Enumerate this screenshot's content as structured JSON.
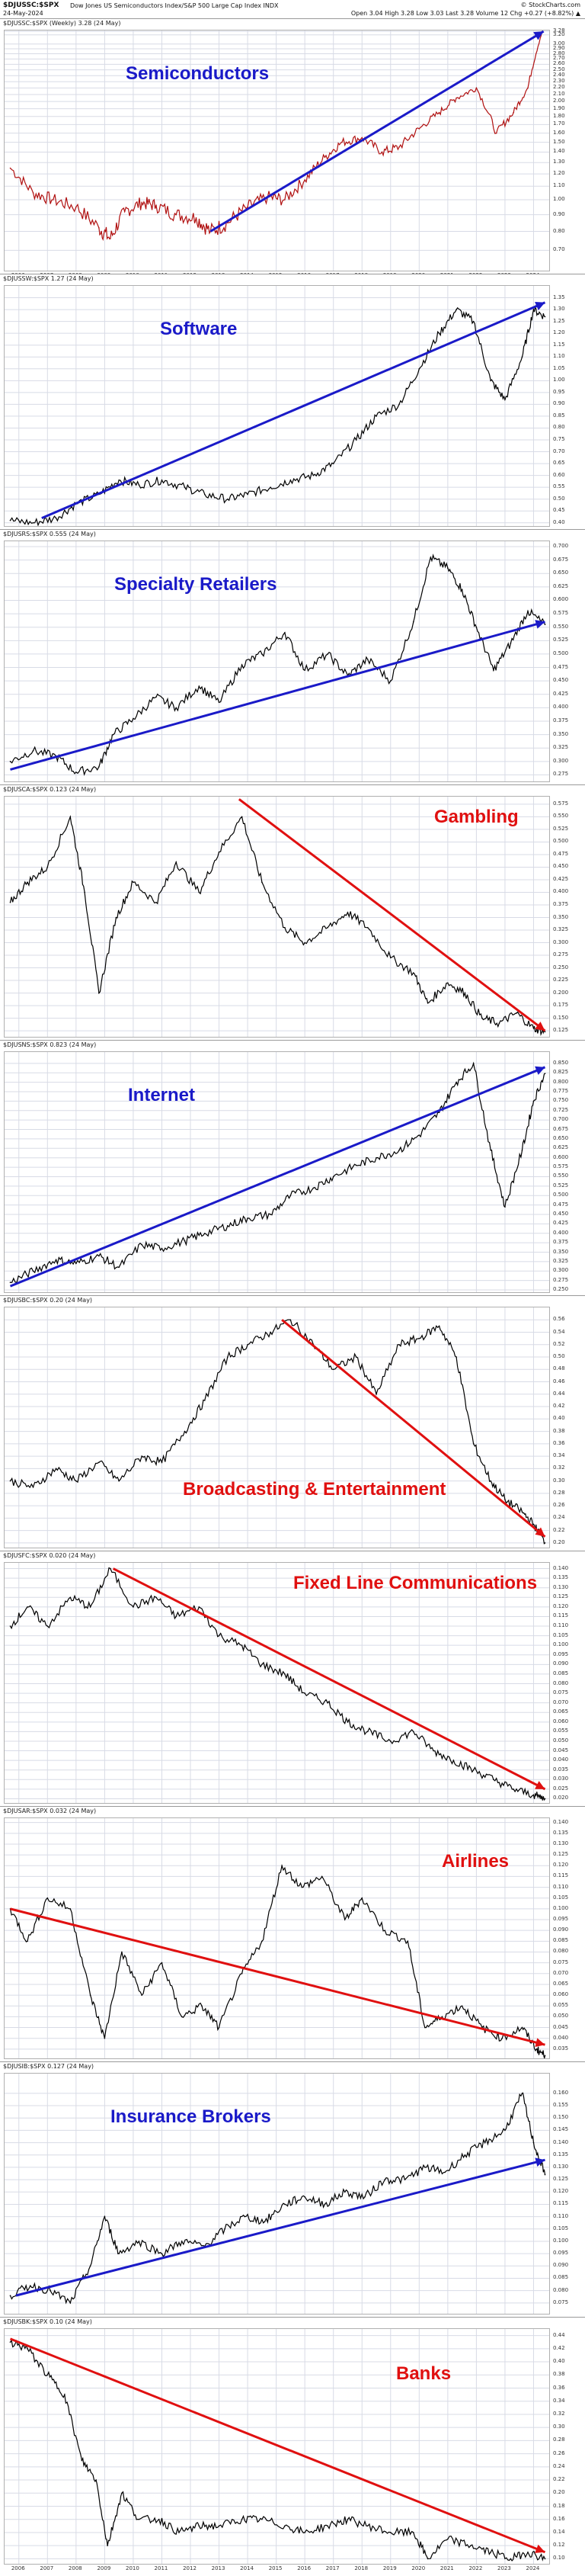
{
  "header": {
    "symbol": "$DJUSSC:$SPX",
    "name": "Dow Jones US Semiconductors Index/S&P 500 Large Cap Index  INDX",
    "date": "24-May-2024",
    "brand": "© StockCharts.com",
    "ohlc": "Open 3.04  High 3.28  Low 3.03  Last 3.28  Volume 12  Chg +0.27 (+8.82%) ▲"
  },
  "colors": {
    "blue": "#1a1ac8",
    "red": "#e01010",
    "series_red": "#b01010",
    "series_black": "#000000",
    "grid": "#d8dbe6"
  },
  "x_ticks": [
    "2006",
    "2007",
    "2008",
    "2009",
    "2010",
    "2011",
    "2012",
    "2013",
    "2014",
    "2015",
    "2016",
    "2017",
    "2018",
    "2019",
    "2020",
    "2021",
    "2022",
    "2023",
    "2024"
  ],
  "chart_data": [
    {
      "type": "line",
      "name": "semiconductors",
      "header": "$DJUSSC:$SPX (Weekly) 3.28 (24 May)",
      "label": "Semiconductors",
      "label_color": "blue",
      "line_color": "series_red",
      "log_scale": true,
      "ylim": [
        0.6,
        3.3
      ],
      "y_ticks": [
        "3.28",
        "3.20",
        "3.00",
        "2.90",
        "2.80",
        "2.70",
        "2.60",
        "2.50",
        "2.40",
        "2.30",
        "2.20",
        "2.10",
        "2.00",
        "1.90",
        "1.80",
        "1.70",
        "1.60",
        "1.50",
        "1.40",
        "1.30",
        "1.20",
        "1.10",
        "1.00",
        "0.90",
        "0.80",
        "0.70"
      ],
      "x": [
        2005.7,
        2006.5,
        2007.2,
        2008.0,
        2008.8,
        2009.2,
        2009.7,
        2010.3,
        2010.8,
        2011.5,
        2012.2,
        2012.7,
        2013.3,
        2014.0,
        2014.7,
        2015.3,
        2016.0,
        2016.7,
        2017.3,
        2018.0,
        2018.7,
        2019.3,
        2020.0,
        2020.7,
        2021.3,
        2022.0,
        2022.7,
        2023.3,
        2023.8,
        2024.3
      ],
      "values": [
        1.25,
        1.05,
        1.0,
        0.95,
        0.82,
        0.76,
        0.92,
        0.98,
        0.96,
        0.9,
        0.88,
        0.8,
        0.85,
        0.95,
        1.02,
        1.0,
        1.15,
        1.35,
        1.5,
        1.55,
        1.4,
        1.45,
        1.65,
        1.85,
        2.05,
        2.2,
        1.6,
        1.85,
        2.2,
        3.28
      ],
      "trend": {
        "color": "blue",
        "from": [
          2012.7,
          0.8
        ],
        "to": [
          2024.35,
          3.28
        ]
      }
    },
    {
      "type": "line",
      "name": "software",
      "header": "$DJUSSW:$SPX 1.27 (24 May)",
      "label": "Software",
      "label_color": "blue",
      "line_color": "series_black",
      "log_scale": false,
      "ylim": [
        0.38,
        1.4
      ],
      "y_ticks": [
        "1.35",
        "1.30",
        "1.25",
        "1.20",
        "1.15",
        "1.10",
        "1.05",
        "1.00",
        "0.95",
        "0.90",
        "0.85",
        "0.80",
        "0.75",
        "0.70",
        "0.65",
        "0.60",
        "0.55",
        "0.50",
        "0.45",
        "0.40"
      ],
      "x": [
        2005.7,
        2006.5,
        2007.3,
        2008.0,
        2008.8,
        2009.5,
        2010.2,
        2011.0,
        2011.8,
        2012.5,
        2013.3,
        2014.0,
        2014.8,
        2015.5,
        2016.3,
        2017.0,
        2017.8,
        2018.5,
        2019.3,
        2020.0,
        2020.7,
        2021.3,
        2021.9,
        2022.5,
        2023.0,
        2023.6,
        2024.0,
        2024.4
      ],
      "values": [
        0.41,
        0.4,
        0.42,
        0.48,
        0.52,
        0.58,
        0.56,
        0.58,
        0.55,
        0.52,
        0.5,
        0.52,
        0.55,
        0.58,
        0.6,
        0.65,
        0.75,
        0.85,
        0.9,
        1.05,
        1.2,
        1.3,
        1.25,
        1.0,
        0.92,
        1.1,
        1.3,
        1.27
      ],
      "trend": {
        "color": "blue",
        "from": [
          2006.8,
          0.42
        ],
        "to": [
          2024.4,
          1.33
        ]
      }
    },
    {
      "type": "line",
      "name": "specialty-retailers",
      "header": "$DJUSRS:$SPX 0.555 (24 May)",
      "label": "Specialty Retailers",
      "label_color": "blue",
      "line_color": "series_black",
      "log_scale": false,
      "ylim": [
        0.26,
        0.71
      ],
      "y_ticks": [
        "0.700",
        "0.675",
        "0.650",
        "0.625",
        "0.600",
        "0.575",
        "0.550",
        "0.525",
        "0.500",
        "0.475",
        "0.450",
        "0.425",
        "0.400",
        "0.375",
        "0.350",
        "0.325",
        "0.300",
        "0.275"
      ],
      "x": [
        2005.7,
        2006.5,
        2007.3,
        2008.0,
        2008.8,
        2009.3,
        2010.0,
        2010.8,
        2011.5,
        2012.3,
        2013.0,
        2013.8,
        2014.5,
        2015.3,
        2016.0,
        2016.8,
        2017.5,
        2018.2,
        2019.0,
        2019.8,
        2020.4,
        2021.0,
        2021.5,
        2022.0,
        2022.6,
        2023.2,
        2023.8,
        2024.4
      ],
      "values": [
        0.3,
        0.32,
        0.31,
        0.28,
        0.29,
        0.35,
        0.38,
        0.42,
        0.4,
        0.44,
        0.41,
        0.48,
        0.5,
        0.54,
        0.47,
        0.5,
        0.46,
        0.49,
        0.45,
        0.56,
        0.68,
        0.66,
        0.62,
        0.55,
        0.47,
        0.52,
        0.58,
        0.555
      ],
      "trend": {
        "color": "blue",
        "from": [
          2005.7,
          0.285
        ],
        "to": [
          2024.4,
          0.56
        ]
      }
    },
    {
      "type": "line",
      "name": "gambling",
      "header": "$DJUSCA:$SPX 0.123 (24 May)",
      "label": "Gambling",
      "label_color": "red",
      "line_color": "series_black",
      "log_scale": false,
      "ylim": [
        0.11,
        0.59
      ],
      "y_ticks": [
        "0.575",
        "0.550",
        "0.525",
        "0.500",
        "0.475",
        "0.450",
        "0.425",
        "0.400",
        "0.375",
        "0.350",
        "0.325",
        "0.300",
        "0.275",
        "0.250",
        "0.225",
        "0.200",
        "0.175",
        "0.150",
        "0.125"
      ],
      "x": [
        2005.7,
        2006.3,
        2007.0,
        2007.8,
        2008.3,
        2008.8,
        2009.4,
        2010.0,
        2010.8,
        2011.5,
        2012.3,
        2013.0,
        2013.8,
        2014.5,
        2015.3,
        2016.0,
        2016.8,
        2017.5,
        2018.2,
        2019.0,
        2019.8,
        2020.3,
        2021.0,
        2021.6,
        2022.2,
        2022.8,
        2023.4,
        2024.0,
        2024.4
      ],
      "values": [
        0.38,
        0.42,
        0.45,
        0.55,
        0.4,
        0.2,
        0.35,
        0.42,
        0.38,
        0.46,
        0.4,
        0.48,
        0.55,
        0.42,
        0.33,
        0.3,
        0.33,
        0.36,
        0.33,
        0.27,
        0.24,
        0.18,
        0.22,
        0.2,
        0.15,
        0.14,
        0.16,
        0.13,
        0.123
      ],
      "trend": {
        "color": "red",
        "from": [
          2013.7,
          0.585
        ],
        "to": [
          2024.4,
          0.125
        ]
      }
    },
    {
      "type": "line",
      "name": "internet",
      "header": "$DJUSNS:$SPX 0.823 (24 May)",
      "label": "Internet",
      "label_color": "blue",
      "line_color": "series_black",
      "log_scale": false,
      "ylim": [
        0.24,
        0.88
      ],
      "y_ticks": [
        "0.850",
        "0.825",
        "0.800",
        "0.775",
        "0.750",
        "0.725",
        "0.700",
        "0.675",
        "0.650",
        "0.625",
        "0.600",
        "0.575",
        "0.550",
        "0.525",
        "0.500",
        "0.475",
        "0.450",
        "0.425",
        "0.400",
        "0.375",
        "0.350",
        "0.325",
        "0.300",
        "0.275",
        "0.250"
      ],
      "x": [
        2005.7,
        2006.5,
        2007.3,
        2008.0,
        2008.8,
        2009.5,
        2010.3,
        2011.0,
        2011.8,
        2012.5,
        2013.3,
        2014.0,
        2014.8,
        2015.5,
        2016.3,
        2017.0,
        2017.8,
        2018.5,
        2019.3,
        2020.0,
        2020.7,
        2021.3,
        2021.9,
        2022.5,
        2023.0,
        2023.6,
        2024.0,
        2024.4
      ],
      "values": [
        0.27,
        0.3,
        0.33,
        0.32,
        0.34,
        0.31,
        0.37,
        0.36,
        0.38,
        0.4,
        0.42,
        0.44,
        0.45,
        0.5,
        0.52,
        0.55,
        0.58,
        0.6,
        0.62,
        0.66,
        0.72,
        0.8,
        0.85,
        0.62,
        0.47,
        0.62,
        0.75,
        0.823
      ],
      "trend": {
        "color": "blue",
        "from": [
          2005.7,
          0.26
        ],
        "to": [
          2024.4,
          0.84
        ]
      }
    },
    {
      "type": "line",
      "name": "broadcasting-entertainment",
      "header": "$DJUSBC:$SPX 0.20 (24 May)",
      "label": "Broadcasting & Entertainment",
      "label_color": "red",
      "line_color": "series_black",
      "log_scale": false,
      "ylim": [
        0.19,
        0.58
      ],
      "y_ticks": [
        "0.56",
        "0.54",
        "0.52",
        "0.50",
        "0.48",
        "0.46",
        "0.44",
        "0.42",
        "0.40",
        "0.38",
        "0.36",
        "0.34",
        "0.32",
        "0.30",
        "0.28",
        "0.26",
        "0.24",
        "0.22",
        "0.20"
      ],
      "x": [
        2005.7,
        2006.5,
        2007.3,
        2008.0,
        2008.8,
        2009.5,
        2010.3,
        2011.0,
        2011.8,
        2012.5,
        2013.3,
        2014.0,
        2014.8,
        2015.5,
        2016.3,
        2017.0,
        2017.8,
        2018.5,
        2019.3,
        2020.0,
        2020.7,
        2021.3,
        2021.9,
        2022.5,
        2023.0,
        2023.6,
        2024.0,
        2024.4
      ],
      "values": [
        0.3,
        0.29,
        0.32,
        0.3,
        0.33,
        0.3,
        0.34,
        0.33,
        0.38,
        0.43,
        0.5,
        0.52,
        0.54,
        0.56,
        0.52,
        0.48,
        0.5,
        0.44,
        0.52,
        0.53,
        0.55,
        0.5,
        0.36,
        0.3,
        0.27,
        0.25,
        0.23,
        0.2
      ],
      "trend": {
        "color": "red",
        "from": [
          2015.2,
          0.56
        ],
        "to": [
          2024.4,
          0.21
        ]
      }
    },
    {
      "type": "line",
      "name": "fixed-line-communications",
      "header": "$DJUSFC:$SPX 0.020 (24 May)",
      "label": "Fixed Line Communications",
      "label_color": "red",
      "line_color": "series_black",
      "log_scale": false,
      "ylim": [
        0.017,
        0.143
      ],
      "y_ticks": [
        "0.140",
        "0.135",
        "0.130",
        "0.125",
        "0.120",
        "0.115",
        "0.110",
        "0.105",
        "0.100",
        "0.095",
        "0.090",
        "0.085",
        "0.080",
        "0.075",
        "0.070",
        "0.065",
        "0.060",
        "0.055",
        "0.050",
        "0.045",
        "0.040",
        "0.035",
        "0.030",
        "0.025",
        "0.020"
      ],
      "x": [
        2005.7,
        2006.3,
        2007.0,
        2007.8,
        2008.5,
        2009.2,
        2010.0,
        2010.8,
        2011.5,
        2012.3,
        2013.0,
        2013.8,
        2014.5,
        2015.3,
        2016.0,
        2016.8,
        2017.5,
        2018.2,
        2019.0,
        2019.8,
        2020.5,
        2021.2,
        2021.9,
        2022.6,
        2023.3,
        2024.0,
        2024.4
      ],
      "values": [
        0.11,
        0.12,
        0.11,
        0.125,
        0.12,
        0.14,
        0.12,
        0.125,
        0.115,
        0.12,
        0.105,
        0.1,
        0.09,
        0.085,
        0.075,
        0.07,
        0.06,
        0.055,
        0.05,
        0.055,
        0.045,
        0.04,
        0.035,
        0.03,
        0.025,
        0.022,
        0.02
      ],
      "trend": {
        "color": "red",
        "from": [
          2009.3,
          0.14
        ],
        "to": [
          2024.4,
          0.025
        ]
      }
    },
    {
      "type": "line",
      "name": "airlines",
      "header": "$DJUSAR:$SPX 0.032 (24 May)",
      "label": "Airlines",
      "label_color": "red",
      "line_color": "series_black",
      "log_scale": false,
      "ylim": [
        0.03,
        0.142
      ],
      "y_ticks": [
        "0.140",
        "0.135",
        "0.130",
        "0.125",
        "0.120",
        "0.115",
        "0.110",
        "0.105",
        "0.100",
        "0.095",
        "0.090",
        "0.085",
        "0.080",
        "0.075",
        "0.070",
        "0.065",
        "0.060",
        "0.055",
        "0.050",
        "0.045",
        "0.040",
        "0.035"
      ],
      "x": [
        2005.7,
        2006.3,
        2007.0,
        2007.8,
        2008.5,
        2009.0,
        2009.6,
        2010.3,
        2011.0,
        2011.7,
        2012.4,
        2013.0,
        2013.8,
        2014.5,
        2015.2,
        2015.9,
        2016.6,
        2017.4,
        2018.0,
        2018.8,
        2019.6,
        2020.2,
        2020.8,
        2021.5,
        2022.2,
        2022.9,
        2023.6,
        2024.1,
        2024.4
      ],
      "values": [
        0.1,
        0.085,
        0.105,
        0.1,
        0.06,
        0.04,
        0.08,
        0.06,
        0.075,
        0.05,
        0.055,
        0.045,
        0.07,
        0.085,
        0.12,
        0.11,
        0.115,
        0.095,
        0.105,
        0.09,
        0.085,
        0.045,
        0.05,
        0.055,
        0.045,
        0.04,
        0.045,
        0.035,
        0.032
      ],
      "trend": {
        "color": "red",
        "from": [
          2005.7,
          0.1
        ],
        "to": [
          2024.4,
          0.037
        ]
      }
    },
    {
      "type": "line",
      "name": "insurance-brokers",
      "header": "$DJUSIB:$SPX 0.127 (24 May)",
      "label": "Insurance Brokers",
      "label_color": "blue",
      "line_color": "series_black",
      "log_scale": false,
      "ylim": [
        0.07,
        0.168
      ],
      "y_ticks": [
        "0.160",
        "0.155",
        "0.150",
        "0.145",
        "0.140",
        "0.135",
        "0.130",
        "0.125",
        "0.120",
        "0.115",
        "0.110",
        "0.105",
        "0.100",
        "0.095",
        "0.090",
        "0.085",
        "0.080",
        "0.075"
      ],
      "x": [
        2005.7,
        2006.4,
        2007.1,
        2007.8,
        2008.5,
        2009.0,
        2009.5,
        2010.2,
        2011.0,
        2011.7,
        2012.5,
        2013.2,
        2013.9,
        2014.6,
        2015.3,
        2016.0,
        2016.7,
        2017.4,
        2018.1,
        2018.8,
        2019.5,
        2020.2,
        2020.9,
        2021.6,
        2022.3,
        2023.0,
        2023.6,
        2024.0,
        2024.4
      ],
      "values": [
        0.078,
        0.082,
        0.08,
        0.075,
        0.09,
        0.11,
        0.095,
        0.1,
        0.095,
        0.1,
        0.098,
        0.105,
        0.11,
        0.108,
        0.115,
        0.118,
        0.115,
        0.12,
        0.118,
        0.125,
        0.125,
        0.13,
        0.128,
        0.135,
        0.14,
        0.145,
        0.16,
        0.14,
        0.127
      ],
      "trend": {
        "color": "blue",
        "from": [
          2005.9,
          0.078
        ],
        "to": [
          2024.4,
          0.133
        ]
      }
    },
    {
      "type": "line",
      "name": "banks",
      "header": "$DJUSBK:$SPX 0.10 (24 May)",
      "label": "Banks",
      "label_color": "red",
      "line_color": "series_black",
      "log_scale": false,
      "ylim": [
        0.09,
        0.45
      ],
      "y_ticks": [
        "0.44",
        "0.42",
        "0.40",
        "0.38",
        "0.36",
        "0.34",
        "0.32",
        "0.30",
        "0.28",
        "0.26",
        "0.24",
        "0.22",
        "0.20",
        "0.18",
        "0.16",
        "0.14",
        "0.12",
        "0.10"
      ],
      "x": [
        2005.7,
        2006.3,
        2007.0,
        2007.6,
        2008.2,
        2008.7,
        2009.1,
        2009.6,
        2010.2,
        2010.9,
        2011.6,
        2012.3,
        2013.0,
        2013.8,
        2014.5,
        2015.3,
        2016.0,
        2016.8,
        2017.5,
        2018.2,
        2019.0,
        2019.8,
        2020.3,
        2021.0,
        2021.8,
        2022.5,
        2023.2,
        2023.8,
        2024.4
      ],
      "values": [
        0.43,
        0.42,
        0.38,
        0.35,
        0.25,
        0.22,
        0.12,
        0.2,
        0.16,
        0.16,
        0.14,
        0.15,
        0.15,
        0.16,
        0.16,
        0.15,
        0.14,
        0.15,
        0.16,
        0.15,
        0.14,
        0.14,
        0.1,
        0.13,
        0.12,
        0.11,
        0.1,
        0.11,
        0.1
      ],
      "trend": {
        "color": "red",
        "from": [
          2005.7,
          0.435
        ],
        "to": [
          2024.4,
          0.11
        ]
      }
    }
  ]
}
